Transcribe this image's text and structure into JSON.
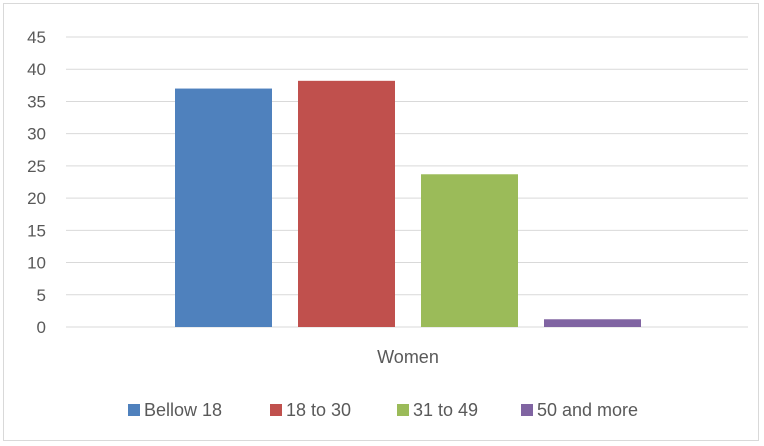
{
  "chart_data": {
    "type": "bar",
    "categories": [
      "Women"
    ],
    "series": [
      {
        "name": "Bellow 18",
        "values": [
          37
        ],
        "color": "#4F81BD"
      },
      {
        "name": "18 to 30",
        "values": [
          38.2
        ],
        "color": "#C0504D"
      },
      {
        "name": "31 to 49",
        "values": [
          23.7
        ],
        "color": "#9BBB59"
      },
      {
        "name": "50 and more",
        "values": [
          1.2
        ],
        "color": "#8064A2"
      }
    ],
    "y_ticks": [
      "0",
      "5",
      "10",
      "15",
      "20",
      "25",
      "30",
      "35",
      "40",
      "45"
    ],
    "ylim": [
      0,
      45
    ],
    "grid": true,
    "legend_position": "bottom"
  }
}
